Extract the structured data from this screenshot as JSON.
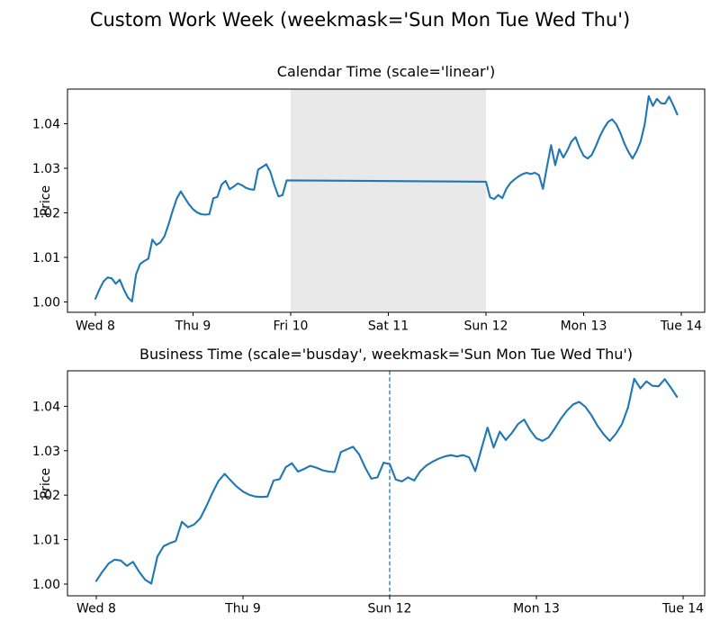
{
  "figure": {
    "suptitle": "Custom Work Week (weekmask='Sun Mon Tue Wed Thu')",
    "colors": {
      "line": "#1f77b4",
      "weekend_band": "#e9e9e9",
      "vline": "#1f77b4",
      "axis": "#000000",
      "background": "#ffffff"
    }
  },
  "price_series": {
    "name": "Price",
    "points_per_day": 24,
    "days": [
      "Wed 8",
      "Thu 9",
      "Sun 12",
      "Mon 13"
    ],
    "calendar_day_offsets": [
      0,
      1,
      4,
      5
    ],
    "business_day_offsets": [
      0,
      1,
      2,
      3
    ],
    "values": [
      1.0007,
      1.0028,
      1.0046,
      1.0055,
      1.0053,
      1.0041,
      1.005,
      1.0028,
      1.001,
      1.0001,
      1.0062,
      1.0085,
      1.0092,
      1.0097,
      1.014,
      1.0128,
      1.0134,
      1.0148,
      1.0175,
      1.0205,
      1.0232,
      1.0248,
      1.0233,
      1.0219,
      1.0208,
      1.0201,
      1.0197,
      1.0196,
      1.0197,
      1.0233,
      1.0236,
      1.0263,
      1.0272,
      1.0253,
      1.0259,
      1.0266,
      1.0262,
      1.0256,
      1.0253,
      1.0252,
      1.0297,
      1.0303,
      1.0309,
      1.0292,
      1.0262,
      1.0237,
      1.024,
      1.0273,
      1.027,
      1.0235,
      1.0231,
      1.024,
      1.0233,
      1.0254,
      1.0267,
      1.0275,
      1.0282,
      1.0287,
      1.029,
      1.0287,
      1.029,
      1.0285,
      1.0254,
      1.0304,
      1.0352,
      1.0307,
      1.0343,
      1.0324,
      1.034,
      1.036,
      1.037,
      1.0346,
      1.0328,
      1.0322,
      1.033,
      1.035,
      1.0372,
      1.039,
      1.0404,
      1.041,
      1.0399,
      1.038,
      1.0356,
      1.0337,
      1.0322,
      1.0338,
      1.036,
      1.0398,
      1.0462,
      1.044,
      1.0456,
      1.0446,
      1.0445,
      1.0461,
      1.0442,
      1.0421
    ]
  },
  "chart_data": [
    {
      "type": "line",
      "title": "Calendar Time (scale='linear')",
      "ylabel": "Price",
      "x_tick_labels": [
        "Wed 8",
        "Thu 9",
        "Fri 10",
        "Sat 11",
        "Sun 12",
        "Mon 13",
        "Tue 14"
      ],
      "x_tick_positions_days": [
        0,
        1,
        2,
        3,
        4,
        5,
        6
      ],
      "y_tick_labels": [
        "1.00",
        "1.01",
        "1.02",
        "1.03",
        "1.04"
      ],
      "y_tick_values": [
        1.0,
        1.01,
        1.02,
        1.03,
        1.04
      ],
      "ylim": [
        0.9977,
        1.0483
      ],
      "weekend_band_days": [
        2,
        4
      ],
      "note": "Fri 10 - Sun 12 gap shaded; line flat at ~1.0273 across the closed weekend"
    },
    {
      "type": "line",
      "title": "Business Time (scale='busday', weekmask='Sun Mon Tue Wed Thu')",
      "ylabel": "Price",
      "x_tick_labels": [
        "Wed 8",
        "Thu 9",
        "Sun 12",
        "Mon 13",
        "Tue 14"
      ],
      "x_tick_positions_days": [
        0,
        1,
        2,
        3,
        4
      ],
      "y_tick_labels": [
        "1.00",
        "1.01",
        "1.02",
        "1.03",
        "1.04"
      ],
      "y_tick_values": [
        1.0,
        1.01,
        1.02,
        1.03,
        1.04
      ],
      "ylim": [
        0.9977,
        1.0483
      ],
      "vline_business_day": 2,
      "vline_label": "Sun 12",
      "note": "dashed vertical line at Sun 12"
    }
  ]
}
